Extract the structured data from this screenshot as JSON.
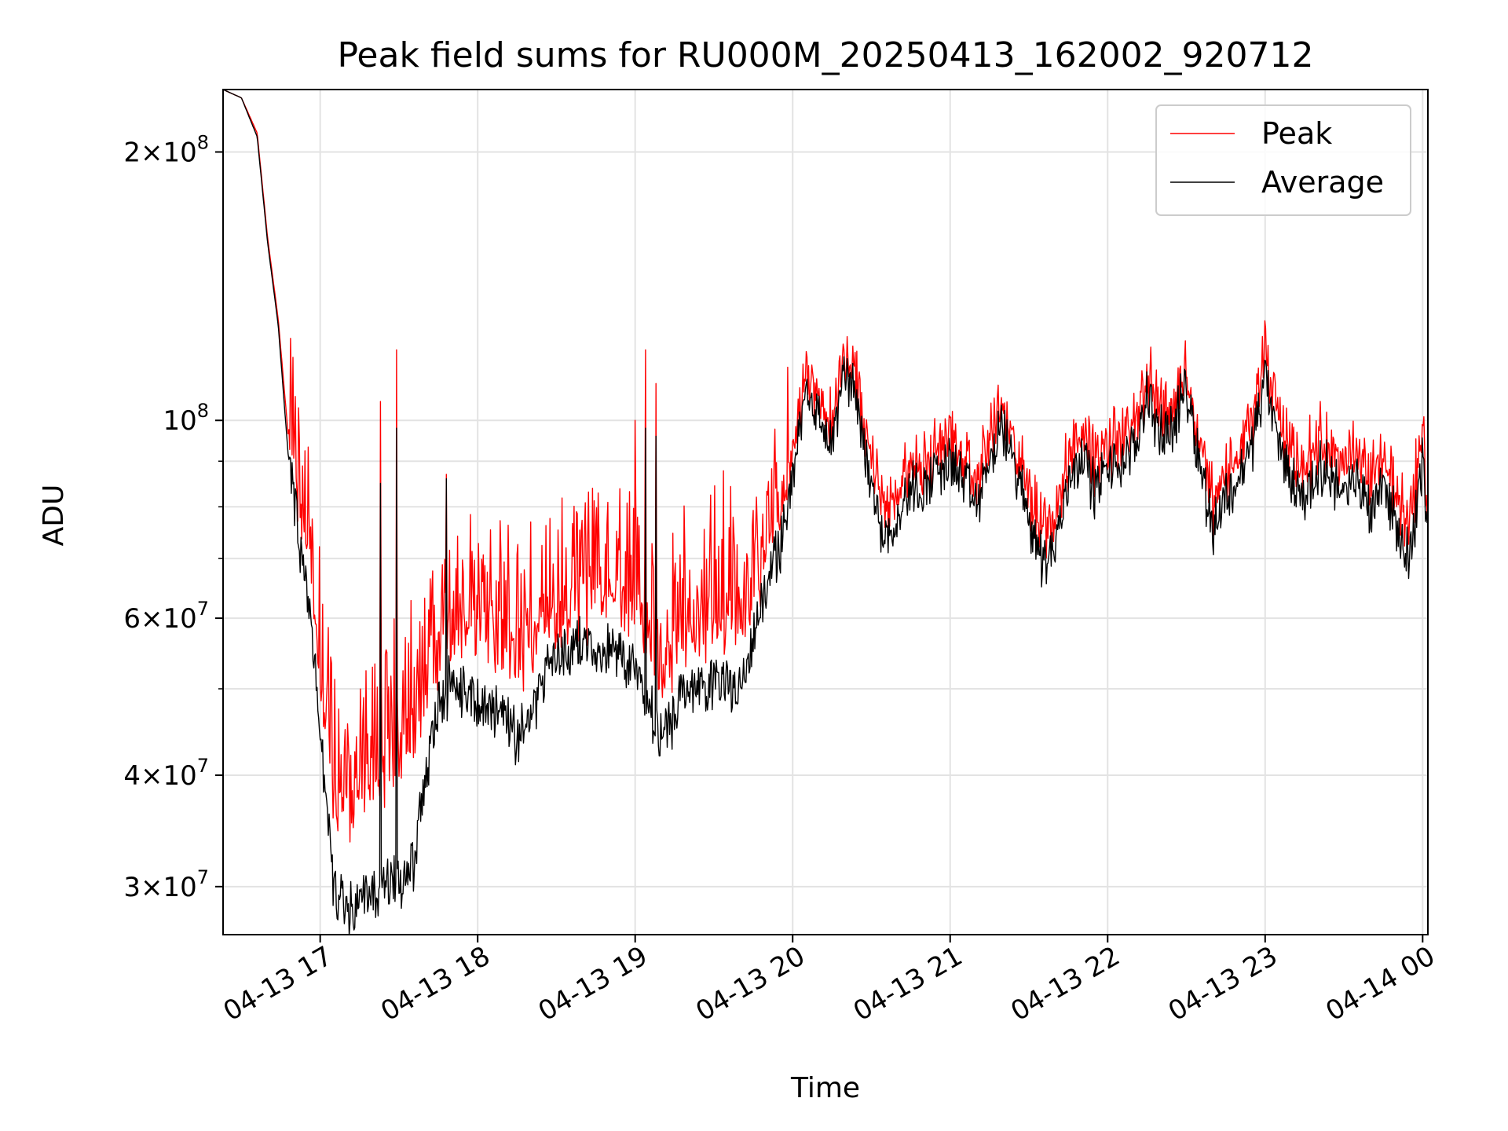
{
  "chart_data": {
    "type": "line",
    "title": "Peak field sums for RU000M_20250413_162002_920712",
    "xlabel": "Time",
    "ylabel": "ADU",
    "y_scale": "log",
    "ylim": [
      26500000,
      235000000
    ],
    "xlim": [
      "2025-04-13 16:23",
      "2025-04-14 00:02"
    ],
    "grid": true,
    "legend_position": "top-right",
    "x_ticks": [
      {
        "time": "2025-04-13 17:00",
        "label": "04-13 17"
      },
      {
        "time": "2025-04-13 18:00",
        "label": "04-13 18"
      },
      {
        "time": "2025-04-13 19:00",
        "label": "04-13 19"
      },
      {
        "time": "2025-04-13 20:00",
        "label": "04-13 20"
      },
      {
        "time": "2025-04-13 21:00",
        "label": "04-13 21"
      },
      {
        "time": "2025-04-13 22:00",
        "label": "04-13 22"
      },
      {
        "time": "2025-04-13 23:00",
        "label": "04-13 23"
      },
      {
        "time": "2025-04-14 00:00",
        "label": "04-14 00"
      }
    ],
    "y_ticks_major": [
      {
        "value": 30000000,
        "mantissa": "3",
        "exp": "7"
      },
      {
        "value": 40000000,
        "mantissa": "4",
        "exp": "7"
      },
      {
        "value": 60000000,
        "mantissa": "6",
        "exp": "7"
      },
      {
        "value": 100000000,
        "mantissa": "",
        "exp": "8"
      },
      {
        "value": 200000000,
        "mantissa": "2",
        "exp": "8"
      }
    ],
    "y_ticks_minor": [
      50000000,
      70000000,
      80000000,
      90000000
    ],
    "series": [
      {
        "name": "Peak",
        "color": "#ff0000",
        "anchors": [
          [
            "2025-04-13 16:23",
            235000000
          ],
          [
            "2025-04-13 16:30",
            230000000
          ],
          [
            "2025-04-13 16:36",
            210000000
          ],
          [
            "2025-04-13 16:40",
            160000000
          ],
          [
            "2025-04-13 16:44",
            130000000
          ],
          [
            "2025-04-13 16:48",
            95000000
          ],
          [
            "2025-04-13 16:52",
            80000000
          ],
          [
            "2025-04-13 16:56",
            66000000
          ],
          [
            "2025-04-13 17:00",
            52000000
          ],
          [
            "2025-04-13 17:05",
            38000000
          ],
          [
            "2025-04-13 17:10",
            35000000
          ],
          [
            "2025-04-13 17:15",
            38000000
          ],
          [
            "2025-04-13 17:20",
            40000000
          ],
          [
            "2025-04-13 17:25",
            40000000
          ],
          [
            "2025-04-13 17:30",
            41000000
          ],
          [
            "2025-04-13 17:35",
            44000000
          ],
          [
            "2025-04-13 17:40",
            50000000
          ],
          [
            "2025-04-13 17:45",
            54000000
          ],
          [
            "2025-04-13 17:50",
            58000000
          ],
          [
            "2025-04-13 18:00",
            58000000
          ],
          [
            "2025-04-13 18:10",
            57000000
          ],
          [
            "2025-04-13 18:15",
            52000000
          ],
          [
            "2025-04-13 18:20",
            56000000
          ],
          [
            "2025-04-13 18:30",
            60000000
          ],
          [
            "2025-04-13 18:40",
            62000000
          ],
          [
            "2025-04-13 18:50",
            63000000
          ],
          [
            "2025-04-13 19:00",
            62000000
          ],
          [
            "2025-04-13 19:05",
            56000000
          ],
          [
            "2025-04-13 19:10",
            52000000
          ],
          [
            "2025-04-13 19:15",
            54000000
          ],
          [
            "2025-04-13 19:20",
            57000000
          ],
          [
            "2025-04-13 19:30",
            59000000
          ],
          [
            "2025-04-13 19:40",
            60000000
          ],
          [
            "2025-04-13 19:45",
            62000000
          ],
          [
            "2025-04-13 19:50",
            72000000
          ],
          [
            "2025-04-13 19:55",
            78000000
          ],
          [
            "2025-04-13 20:00",
            92000000
          ],
          [
            "2025-04-13 20:05",
            115000000
          ],
          [
            "2025-04-13 20:10",
            105000000
          ],
          [
            "2025-04-13 20:15",
            98000000
          ],
          [
            "2025-04-13 20:20",
            118000000
          ],
          [
            "2025-04-13 20:25",
            110000000
          ],
          [
            "2025-04-13 20:30",
            90000000
          ],
          [
            "2025-04-13 20:35",
            80000000
          ],
          [
            "2025-04-13 20:40",
            84000000
          ],
          [
            "2025-04-13 20:45",
            90000000
          ],
          [
            "2025-04-13 20:50",
            88000000
          ],
          [
            "2025-04-13 20:55",
            92000000
          ],
          [
            "2025-04-13 21:00",
            96000000
          ],
          [
            "2025-04-13 21:05",
            90000000
          ],
          [
            "2025-04-13 21:10",
            84000000
          ],
          [
            "2025-04-13 21:15",
            96000000
          ],
          [
            "2025-04-13 21:20",
            104000000
          ],
          [
            "2025-04-13 21:25",
            92000000
          ],
          [
            "2025-04-13 21:30",
            82000000
          ],
          [
            "2025-04-13 21:35",
            76000000
          ],
          [
            "2025-04-13 21:40",
            78000000
          ],
          [
            "2025-04-13 21:45",
            92000000
          ],
          [
            "2025-04-13 21:50",
            98000000
          ],
          [
            "2025-04-13 21:55",
            90000000
          ],
          [
            "2025-04-13 22:00",
            93000000
          ],
          [
            "2025-04-13 22:05",
            96000000
          ],
          [
            "2025-04-13 22:10",
            98000000
          ],
          [
            "2025-04-13 22:15",
            112000000
          ],
          [
            "2025-04-13 22:20",
            102000000
          ],
          [
            "2025-04-13 22:25",
            104000000
          ],
          [
            "2025-04-13 22:30",
            115000000
          ],
          [
            "2025-04-13 22:35",
            96000000
          ],
          [
            "2025-04-13 22:40",
            82000000
          ],
          [
            "2025-04-13 22:45",
            88000000
          ],
          [
            "2025-04-13 22:50",
            92000000
          ],
          [
            "2025-04-13 22:55",
            100000000
          ],
          [
            "2025-04-13 23:00",
            118000000
          ],
          [
            "2025-04-13 23:05",
            100000000
          ],
          [
            "2025-04-13 23:10",
            92000000
          ],
          [
            "2025-04-13 23:15",
            88000000
          ],
          [
            "2025-04-13 23:20",
            96000000
          ],
          [
            "2025-04-13 23:25",
            94000000
          ],
          [
            "2025-04-13 23:30",
            88000000
          ],
          [
            "2025-04-13 23:35",
            92000000
          ],
          [
            "2025-04-13 23:40",
            86000000
          ],
          [
            "2025-04-13 23:45",
            92000000
          ],
          [
            "2025-04-13 23:50",
            82000000
          ],
          [
            "2025-04-13 23:55",
            78000000
          ],
          [
            "2025-04-14 00:00",
            96000000
          ],
          [
            "2025-04-14 00:02",
            82000000
          ]
        ]
      },
      {
        "name": "Average",
        "color": "#000000",
        "anchors": [
          [
            "2025-04-13 16:23",
            235000000
          ],
          [
            "2025-04-13 16:30",
            230000000
          ],
          [
            "2025-04-13 16:36",
            208000000
          ],
          [
            "2025-04-13 16:40",
            158000000
          ],
          [
            "2025-04-13 16:44",
            128000000
          ],
          [
            "2025-04-13 16:48",
            90000000
          ],
          [
            "2025-04-13 16:52",
            74000000
          ],
          [
            "2025-04-13 16:56",
            60000000
          ],
          [
            "2025-04-13 17:00",
            46000000
          ],
          [
            "2025-04-13 17:05",
            30000000
          ],
          [
            "2025-04-13 17:10",
            28000000
          ],
          [
            "2025-04-13 17:15",
            29000000
          ],
          [
            "2025-04-13 17:20",
            29500000
          ],
          [
            "2025-04-13 17:25",
            30000000
          ],
          [
            "2025-04-13 17:30",
            30000000
          ],
          [
            "2025-04-13 17:35",
            31500000
          ],
          [
            "2025-04-13 17:40",
            40000000
          ],
          [
            "2025-04-13 17:45",
            48000000
          ],
          [
            "2025-04-13 17:50",
            51000000
          ],
          [
            "2025-04-13 18:00",
            48000000
          ],
          [
            "2025-04-13 18:10",
            47000000
          ],
          [
            "2025-04-13 18:15",
            44000000
          ],
          [
            "2025-04-13 18:20",
            47000000
          ],
          [
            "2025-04-13 18:30",
            55000000
          ],
          [
            "2025-04-13 18:40",
            56000000
          ],
          [
            "2025-04-13 18:50",
            55000000
          ],
          [
            "2025-04-13 19:00",
            53000000
          ],
          [
            "2025-04-13 19:05",
            48000000
          ],
          [
            "2025-04-13 19:10",
            44000000
          ],
          [
            "2025-04-13 19:15",
            47000000
          ],
          [
            "2025-04-13 19:20",
            50000000
          ],
          [
            "2025-04-13 19:30",
            51000000
          ],
          [
            "2025-04-13 19:40",
            50000000
          ],
          [
            "2025-04-13 19:45",
            56000000
          ],
          [
            "2025-04-13 19:50",
            66000000
          ],
          [
            "2025-04-13 19:55",
            72000000
          ],
          [
            "2025-04-13 20:00",
            86000000
          ],
          [
            "2025-04-13 20:05",
            110000000
          ],
          [
            "2025-04-13 20:10",
            100000000
          ],
          [
            "2025-04-13 20:15",
            94000000
          ],
          [
            "2025-04-13 20:20",
            114000000
          ],
          [
            "2025-04-13 20:25",
            104000000
          ],
          [
            "2025-04-13 20:30",
            84000000
          ],
          [
            "2025-04-13 20:35",
            74000000
          ],
          [
            "2025-04-13 20:40",
            78000000
          ],
          [
            "2025-04-13 20:45",
            84000000
          ],
          [
            "2025-04-13 20:50",
            84000000
          ],
          [
            "2025-04-13 20:55",
            88000000
          ],
          [
            "2025-04-13 21:00",
            90000000
          ],
          [
            "2025-04-13 21:05",
            86000000
          ],
          [
            "2025-04-13 21:10",
            80000000
          ],
          [
            "2025-04-13 21:15",
            90000000
          ],
          [
            "2025-04-13 21:20",
            98000000
          ],
          [
            "2025-04-13 21:25",
            88000000
          ],
          [
            "2025-04-13 21:30",
            78000000
          ],
          [
            "2025-04-13 21:35",
            70000000
          ],
          [
            "2025-04-13 21:40",
            72000000
          ],
          [
            "2025-04-13 21:45",
            86000000
          ],
          [
            "2025-04-13 21:50",
            92000000
          ],
          [
            "2025-04-13 21:55",
            84000000
          ],
          [
            "2025-04-13 22:00",
            88000000
          ],
          [
            "2025-04-13 22:05",
            90000000
          ],
          [
            "2025-04-13 22:10",
            92000000
          ],
          [
            "2025-04-13 22:15",
            108000000
          ],
          [
            "2025-04-13 22:20",
            96000000
          ],
          [
            "2025-04-13 22:25",
            98000000
          ],
          [
            "2025-04-13 22:30",
            110000000
          ],
          [
            "2025-04-13 22:35",
            90000000
          ],
          [
            "2025-04-13 22:40",
            76000000
          ],
          [
            "2025-04-13 22:45",
            82000000
          ],
          [
            "2025-04-13 22:50",
            86000000
          ],
          [
            "2025-04-13 22:55",
            94000000
          ],
          [
            "2025-04-13 23:00",
            112000000
          ],
          [
            "2025-04-13 23:05",
            94000000
          ],
          [
            "2025-04-13 23:10",
            86000000
          ],
          [
            "2025-04-13 23:15",
            82000000
          ],
          [
            "2025-04-13 23:20",
            88000000
          ],
          [
            "2025-04-13 23:25",
            88000000
          ],
          [
            "2025-04-13 23:30",
            82000000
          ],
          [
            "2025-04-13 23:35",
            86000000
          ],
          [
            "2025-04-13 23:40",
            80000000
          ],
          [
            "2025-04-13 23:45",
            86000000
          ],
          [
            "2025-04-13 23:50",
            76000000
          ],
          [
            "2025-04-13 23:55",
            70000000
          ],
          [
            "2025-04-14 00:00",
            90000000
          ],
          [
            "2025-04-14 00:02",
            76000000
          ]
        ],
        "events": [
          [
            "2025-04-13 17:23",
            85000000
          ],
          [
            "2025-04-13 17:29",
            98000000
          ],
          [
            "2025-04-13 17:48",
            86000000
          ],
          [
            "2025-04-13 19:04",
            98000000
          ],
          [
            "2025-04-13 19:08",
            96000000
          ]
        ]
      }
    ],
    "peak_spikes": [
      [
        "2025-04-13 17:23",
        105000000
      ],
      [
        "2025-04-13 17:29",
        120000000
      ],
      [
        "2025-04-13 17:48",
        87000000
      ],
      [
        "2025-04-13 19:00",
        100000000
      ],
      [
        "2025-04-13 19:04",
        120000000
      ],
      [
        "2025-04-13 19:08",
        110000000
      ]
    ]
  },
  "legend": {
    "items": [
      {
        "label": "Peak",
        "color": "#ff0000"
      },
      {
        "label": "Average",
        "color": "#000000"
      }
    ]
  }
}
